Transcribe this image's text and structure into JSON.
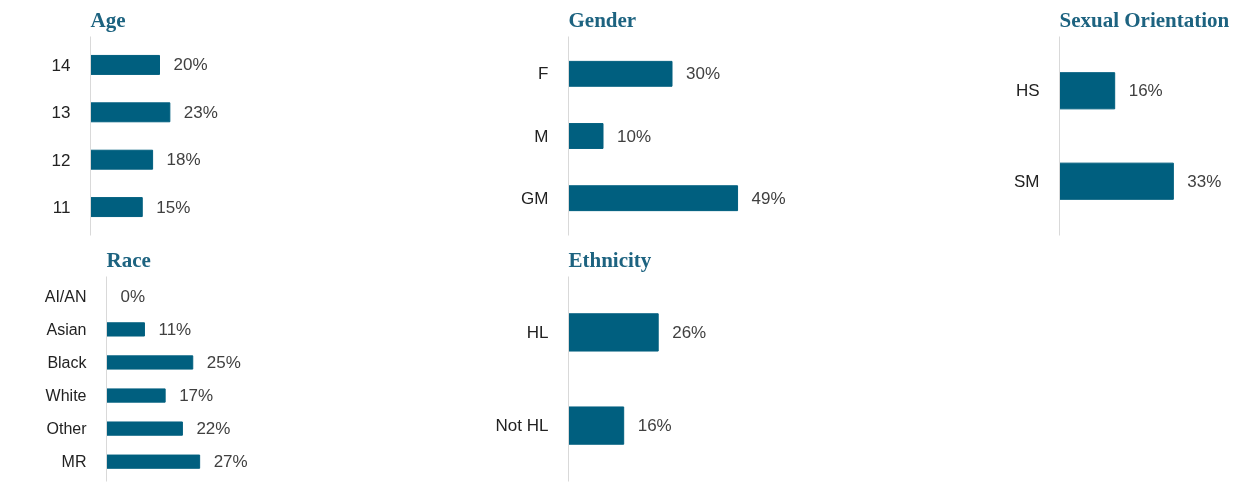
{
  "chart_data": [
    {
      "type": "bar",
      "orientation": "horizontal",
      "title": "Age",
      "categories": [
        "14",
        "13",
        "12",
        "11"
      ],
      "values": [
        20,
        23,
        18,
        15
      ],
      "value_labels": [
        "20%",
        "23%",
        "18%",
        "15%"
      ],
      "color": "#005f7f"
    },
    {
      "type": "bar",
      "orientation": "horizontal",
      "title": "Gender",
      "categories": [
        "F",
        "M",
        "GM"
      ],
      "values": [
        30,
        10,
        49
      ],
      "value_labels": [
        "30%",
        "10%",
        "49%"
      ],
      "color": "#005f7f"
    },
    {
      "type": "bar",
      "orientation": "horizontal",
      "title": "Sexual Orientation",
      "categories": [
        "HS",
        "SM"
      ],
      "values": [
        16,
        33
      ],
      "value_labels": [
        "16%",
        "33%"
      ],
      "color": "#005f7f"
    },
    {
      "type": "bar",
      "orientation": "horizontal",
      "title": "Race",
      "categories": [
        "AI/AN",
        "Asian",
        "Black",
        "White",
        "Other",
        "MR"
      ],
      "values": [
        0,
        11,
        25,
        17,
        22,
        27
      ],
      "value_labels": [
        "0%",
        "11%",
        "25%",
        "17%",
        "22%",
        "27%"
      ],
      "color": "#005f7f"
    },
    {
      "type": "bar",
      "orientation": "horizontal",
      "title": "Ethnicity",
      "categories": [
        "HL",
        "Not HL"
      ],
      "values": [
        26,
        16
      ],
      "value_labels": [
        "26%",
        "16%"
      ],
      "color": "#005f7f"
    }
  ]
}
